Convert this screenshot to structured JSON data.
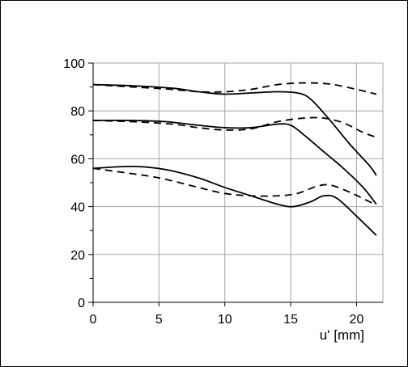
{
  "chart_data": {
    "type": "line",
    "title": "",
    "xlabel": "u' [mm]",
    "ylabel": "",
    "xlim": [
      0,
      22
    ],
    "ylim": [
      0,
      100
    ],
    "x_ticks": [
      0,
      5,
      10,
      15,
      20
    ],
    "x_tick_labels": [
      "0",
      "5",
      "10",
      "15",
      "20"
    ],
    "y_ticks": [
      0,
      20,
      40,
      60,
      80,
      100
    ],
    "y_tick_labels": [
      "0",
      "20",
      "40",
      "60",
      "80",
      "100"
    ],
    "y_minor_step": 10,
    "grid": true,
    "legend": "none",
    "colors": {
      "grid": "#a6a6a6",
      "axis": "#000000",
      "line": "#000000",
      "plot_background": "#ffffff"
    },
    "series": [
      {
        "style": "solid",
        "points": [
          [
            0,
            91
          ],
          [
            3,
            90.5
          ],
          [
            6,
            89.5
          ],
          [
            8,
            88
          ],
          [
            10,
            87
          ],
          [
            12,
            87.5
          ],
          [
            14,
            88
          ],
          [
            15.5,
            87.5
          ],
          [
            16.5,
            85
          ],
          [
            18,
            76
          ],
          [
            19.5,
            66
          ],
          [
            21,
            57
          ],
          [
            21.5,
            53
          ]
        ]
      },
      {
        "style": "dashed",
        "points": [
          [
            0,
            91
          ],
          [
            3,
            90
          ],
          [
            6,
            89
          ],
          [
            8,
            88
          ],
          [
            10,
            88
          ],
          [
            12,
            89
          ],
          [
            14,
            91
          ],
          [
            16,
            91.7
          ],
          [
            18,
            91.2
          ],
          [
            20,
            89
          ],
          [
            21.5,
            87
          ]
        ]
      },
      {
        "style": "solid",
        "points": [
          [
            0,
            76
          ],
          [
            3,
            76
          ],
          [
            5.5,
            75.5
          ],
          [
            8,
            74
          ],
          [
            10,
            73
          ],
          [
            12,
            73
          ],
          [
            14,
            74.5
          ],
          [
            15,
            74
          ],
          [
            16,
            70
          ],
          [
            17.5,
            63
          ],
          [
            19,
            56
          ],
          [
            20.5,
            48
          ],
          [
            21.5,
            41
          ]
        ]
      },
      {
        "style": "dashed",
        "points": [
          [
            0,
            76
          ],
          [
            3,
            75.5
          ],
          [
            6,
            74.5
          ],
          [
            8,
            73
          ],
          [
            10,
            72
          ],
          [
            12,
            72.5
          ],
          [
            14,
            75.5
          ],
          [
            16,
            77
          ],
          [
            17.5,
            77
          ],
          [
            19,
            75
          ],
          [
            20.5,
            71
          ],
          [
            21.5,
            69
          ]
        ]
      },
      {
        "style": "solid",
        "points": [
          [
            0,
            56
          ],
          [
            3,
            56.8
          ],
          [
            5.5,
            55.5
          ],
          [
            8,
            52
          ],
          [
            10,
            48
          ],
          [
            12,
            44.5
          ],
          [
            14,
            41
          ],
          [
            15.2,
            40
          ],
          [
            16.5,
            42
          ],
          [
            17.5,
            44.5
          ],
          [
            18.5,
            43.5
          ],
          [
            20,
            36
          ],
          [
            21.5,
            28
          ]
        ]
      },
      {
        "style": "dashed",
        "points": [
          [
            0,
            56
          ],
          [
            2,
            54.5
          ],
          [
            5,
            52
          ],
          [
            8,
            48
          ],
          [
            10,
            45.5
          ],
          [
            12,
            44.5
          ],
          [
            14,
            44.5
          ],
          [
            15.5,
            45.5
          ],
          [
            17,
            48.5
          ],
          [
            18,
            49
          ],
          [
            19.5,
            46
          ],
          [
            21,
            42
          ],
          [
            21.5,
            41
          ]
        ]
      }
    ]
  }
}
